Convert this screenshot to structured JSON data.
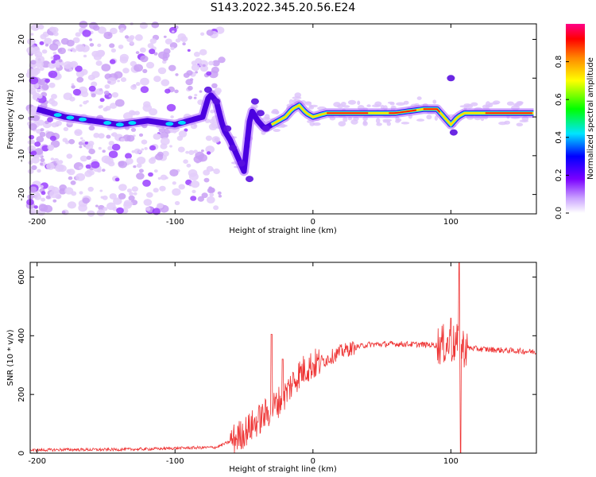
{
  "title": "S143.2022.345.20.56.E24",
  "chart_data": [
    {
      "type": "heatmap",
      "xlabel": "Height of straight line (km)",
      "ylabel": "Frequency (Hz)",
      "xlim": [
        -205,
        162
      ],
      "ylim": [
        -25,
        24
      ],
      "xticks": [
        -200,
        -100,
        0,
        100
      ],
      "yticks": [
        -20,
        -10,
        0,
        10,
        20
      ],
      "colorbar": {
        "label": "Normalized spectral amplitude",
        "range": [
          0.0,
          1.0
        ],
        "ticks": [
          "0.0",
          "0.2",
          "0.4",
          "0.6",
          "0.8"
        ]
      },
      "ridge": {
        "x": [
          -200,
          -180,
          -160,
          -140,
          -120,
          -100,
          -90,
          -80,
          -75,
          -70,
          -65,
          -60,
          -55,
          -50,
          -45,
          -40,
          -35,
          -30,
          -25,
          -20,
          -15,
          -10,
          -5,
          0,
          10,
          20,
          40,
          60,
          80,
          90,
          95,
          100,
          105,
          110,
          120,
          140,
          160
        ],
        "y": [
          2,
          0,
          -1,
          -2,
          -1,
          -2,
          -1,
          0,
          6,
          4,
          -3,
          -6,
          -10,
          -14,
          2,
          -1,
          -3,
          -2,
          -1,
          0,
          2,
          3,
          1,
          0,
          1,
          1,
          1,
          1,
          2,
          2,
          0,
          -2,
          0,
          1,
          1,
          1,
          1
        ]
      }
    },
    {
      "type": "line",
      "xlabel": "Height of straight line (km)",
      "ylabel": "SNR (10 * v/v)",
      "xlim": [
        -205,
        162
      ],
      "ylim": [
        0,
        650
      ],
      "xticks": [
        -200,
        -100,
        0,
        100
      ],
      "yticks": [
        0,
        200,
        400,
        600
      ],
      "color": "#ee3333",
      "envelope": {
        "x": [
          -205,
          -180,
          -150,
          -120,
          -90,
          -70,
          -60,
          -50,
          -40,
          -30,
          -20,
          -15,
          -10,
          -5,
          0,
          10,
          20,
          30,
          40,
          60,
          80,
          90,
          95,
          100,
          105,
          110,
          120,
          140,
          162
        ],
        "y": [
          10,
          12,
          12,
          14,
          18,
          20,
          40,
          70,
          110,
          150,
          200,
          240,
          270,
          290,
          300,
          320,
          345,
          360,
          370,
          372,
          370,
          368,
          370,
          372,
          370,
          360,
          355,
          350,
          345
        ]
      },
      "spikes": [
        {
          "x": -30,
          "y": 405
        },
        {
          "x": -22,
          "y": 320
        },
        {
          "x": 100,
          "y": 460
        },
        {
          "x": 106,
          "y": 650
        },
        {
          "x": 107,
          "y": 0
        }
      ]
    }
  ]
}
